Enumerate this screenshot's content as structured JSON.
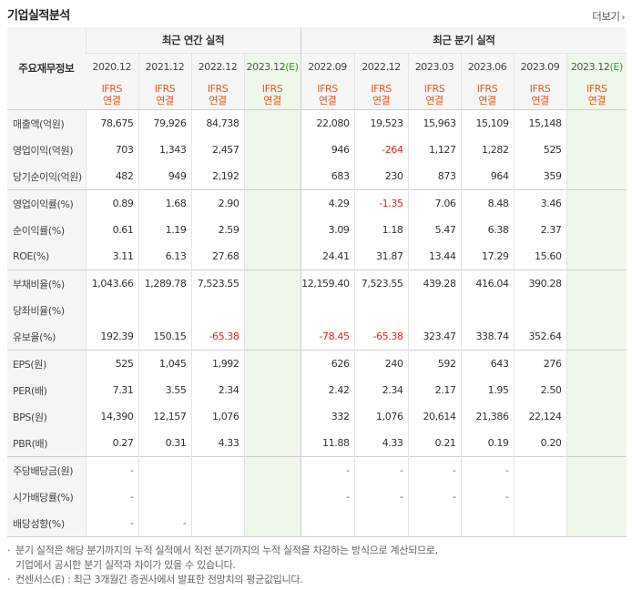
{
  "section_title": "기업실적분석",
  "more_link": "더보기",
  "table": {
    "row_header_label": "주요재무정보",
    "annual_group_label": "최근 연간 실적",
    "quarter_group_label": "최근 분기 실적",
    "annual_periods": [
      "2020.12",
      "2021.12",
      "2022.12",
      "2023.12"
    ],
    "quarter_periods": [
      "2022.09",
      "2022.12",
      "2023.03",
      "2023.06",
      "2023.09",
      "2023.12"
    ],
    "estimate_mark": "(E)",
    "ifrs_line1": "IFRS",
    "ifrs_line2": "연결",
    "rows": [
      {
        "label": "매출액(억원)",
        "annual": [
          "78,675",
          "79,926",
          "84,738",
          ""
        ],
        "quarter": [
          "22,080",
          "19,523",
          "15,963",
          "15,109",
          "15,148",
          ""
        ]
      },
      {
        "label": "영업이익(억원)",
        "annual": [
          "703",
          "1,343",
          "2,457",
          ""
        ],
        "quarter": [
          "946",
          "-264",
          "1,127",
          "1,282",
          "525",
          ""
        ]
      },
      {
        "label": "당기순이익(억원)",
        "annual": [
          "482",
          "949",
          "2,192",
          ""
        ],
        "quarter": [
          "683",
          "230",
          "873",
          "964",
          "359",
          ""
        ]
      },
      {
        "label": "영업이익률(%)",
        "annual": [
          "0.89",
          "1.68",
          "2.90",
          ""
        ],
        "quarter": [
          "4.29",
          "-1.35",
          "7.06",
          "8.48",
          "3.46",
          ""
        ]
      },
      {
        "label": "순이익률(%)",
        "annual": [
          "0.61",
          "1.19",
          "2.59",
          ""
        ],
        "quarter": [
          "3.09",
          "1.18",
          "5.47",
          "6.38",
          "2.37",
          ""
        ]
      },
      {
        "label": "ROE(%)",
        "annual": [
          "3.11",
          "6.13",
          "27.68",
          ""
        ],
        "quarter": [
          "24.41",
          "31.87",
          "13.44",
          "17.29",
          "15.60",
          ""
        ]
      },
      {
        "label": "부채비율(%)",
        "annual": [
          "1,043.66",
          "1,289.78",
          "7,523.55",
          ""
        ],
        "quarter": [
          "12,159.40",
          "7,523.55",
          "439.28",
          "416.04",
          "390.28",
          ""
        ]
      },
      {
        "label": "당좌비율(%)",
        "annual": [
          "",
          "",
          "",
          ""
        ],
        "quarter": [
          "",
          "",
          "",
          "",
          "",
          ""
        ]
      },
      {
        "label": "유보율(%)",
        "annual": [
          "192.39",
          "150.15",
          "-65.38",
          ""
        ],
        "quarter": [
          "-78.45",
          "-65.38",
          "323.47",
          "338.74",
          "352.64",
          ""
        ]
      },
      {
        "label": "EPS(원)",
        "annual": [
          "525",
          "1,045",
          "1,992",
          ""
        ],
        "quarter": [
          "626",
          "240",
          "592",
          "643",
          "276",
          ""
        ]
      },
      {
        "label": "PER(배)",
        "annual": [
          "7.31",
          "3.55",
          "2.34",
          ""
        ],
        "quarter": [
          "2.42",
          "2.34",
          "2.17",
          "1.95",
          "2.50",
          ""
        ]
      },
      {
        "label": "BPS(원)",
        "annual": [
          "14,390",
          "12,157",
          "1,076",
          ""
        ],
        "quarter": [
          "332",
          "1,076",
          "20,614",
          "21,386",
          "22,124",
          ""
        ]
      },
      {
        "label": "PBR(배)",
        "annual": [
          "0.27",
          "0.31",
          "4.33",
          ""
        ],
        "quarter": [
          "11.88",
          "4.33",
          "0.21",
          "0.19",
          "0.20",
          ""
        ]
      },
      {
        "label": "주당배당금(원)",
        "annual": [
          "-",
          "",
          "",
          ""
        ],
        "quarter": [
          "-",
          "-",
          "-",
          "-",
          "",
          ""
        ]
      },
      {
        "label": "시가배당률(%)",
        "annual": [
          "-",
          "",
          "",
          ""
        ],
        "quarter": [
          "-",
          "-",
          "-",
          "-",
          "",
          ""
        ]
      },
      {
        "label": "배당성향(%)",
        "annual": [
          "-",
          "-",
          "",
          ""
        ],
        "quarter": [
          "",
          "",
          "",
          "",
          "",
          ""
        ]
      }
    ]
  },
  "notes": [
    "분기 실적은 해당 분기까지의 누적 실적에서 직전 분기까지의 누적 실적을 차감하는 방식으로 계산되므로,",
    "기업에서 공시한 분기 실적과 차이가 있을 수 있습니다.",
    "컨센서스(E) : 최근 3개월간 증권사에서 발표한 전망치의 평균값입니다."
  ],
  "colors": {
    "ifrs_text": "#e8561e",
    "negative_value": "#e0261e",
    "estimate_mark": "#3a9a3a",
    "estimate_bg": "#eef7ea",
    "label_bg": "#f6f6f6"
  }
}
